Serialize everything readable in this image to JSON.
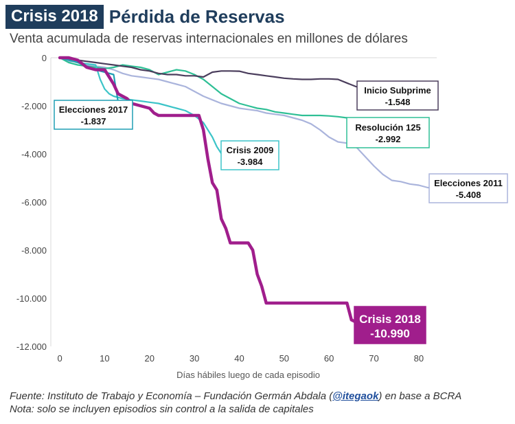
{
  "header": {
    "badge": "Crisis 2018",
    "title": "Pérdida de Reservas",
    "subtitle": "Venta acumulada de reservas internacionales en millones de dólares"
  },
  "footer": {
    "source_prefix": "Fuente: Instituto de Trabajo y Economía – Fundación Germán Abdala (",
    "source_handle": "@itegaok",
    "source_suffix": ") en base a BCRA",
    "note": "Nota: solo se incluyen episodios sin control a la salida de capitales"
  },
  "chart_data": {
    "type": "line",
    "title": "Pérdida de Reservas",
    "xlabel": "Días hábiles luego de cada episodio",
    "ylabel": "",
    "xlim": [
      -2,
      84
    ],
    "ylim": [
      -12000,
      0
    ],
    "x_ticks": [
      0,
      10,
      20,
      30,
      40,
      50,
      60,
      70,
      80
    ],
    "y_ticks": [
      0,
      -2000,
      -4000,
      -6000,
      -8000,
      -10000,
      -12000
    ],
    "y_tick_labels": [
      "0",
      "-2.000",
      "-4.000",
      "-6.000",
      "-8.000",
      "-10.000",
      "-12.000"
    ],
    "grid": false,
    "series": [
      {
        "name": "Elecciones 2011",
        "color": "#aab4dc",
        "final_label": "-5.408",
        "points": [
          [
            0,
            0
          ],
          [
            2,
            -150
          ],
          [
            4,
            -150
          ],
          [
            6,
            -300
          ],
          [
            8,
            -350
          ],
          [
            10,
            -400
          ],
          [
            12,
            -500
          ],
          [
            14,
            -650
          ],
          [
            16,
            -750
          ],
          [
            18,
            -800
          ],
          [
            20,
            -850
          ],
          [
            22,
            -900
          ],
          [
            24,
            -1000
          ],
          [
            26,
            -1100
          ],
          [
            28,
            -1200
          ],
          [
            30,
            -1400
          ],
          [
            32,
            -1600
          ],
          [
            34,
            -1750
          ],
          [
            36,
            -1900
          ],
          [
            38,
            -2000
          ],
          [
            40,
            -2100
          ],
          [
            42,
            -2150
          ],
          [
            44,
            -2200
          ],
          [
            46,
            -2300
          ],
          [
            48,
            -2350
          ],
          [
            50,
            -2400
          ],
          [
            52,
            -2500
          ],
          [
            54,
            -2600
          ],
          [
            56,
            -2750
          ],
          [
            58,
            -3000
          ],
          [
            60,
            -3300
          ],
          [
            62,
            -3500
          ],
          [
            64,
            -3550
          ],
          [
            66,
            -3700
          ],
          [
            68,
            -4100
          ],
          [
            70,
            -4500
          ],
          [
            72,
            -4850
          ],
          [
            74,
            -5100
          ],
          [
            76,
            -5150
          ],
          [
            78,
            -5250
          ],
          [
            80,
            -5300
          ],
          [
            82,
            -5400
          ],
          [
            83,
            -5408
          ]
        ]
      },
      {
        "name": "Resolución 125",
        "color": "#2ebf95",
        "final_label": "-2.992",
        "points": [
          [
            0,
            0
          ],
          [
            2,
            -200
          ],
          [
            4,
            -300
          ],
          [
            6,
            -350
          ],
          [
            8,
            -400
          ],
          [
            10,
            -450
          ],
          [
            12,
            -400
          ],
          [
            14,
            -300
          ],
          [
            16,
            -350
          ],
          [
            18,
            -400
          ],
          [
            20,
            -500
          ],
          [
            22,
            -700
          ],
          [
            24,
            -600
          ],
          [
            26,
            -500
          ],
          [
            28,
            -550
          ],
          [
            30,
            -700
          ],
          [
            32,
            -900
          ],
          [
            34,
            -1200
          ],
          [
            36,
            -1500
          ],
          [
            38,
            -1700
          ],
          [
            40,
            -1900
          ],
          [
            42,
            -2000
          ],
          [
            44,
            -2100
          ],
          [
            46,
            -2150
          ],
          [
            48,
            -2250
          ],
          [
            50,
            -2300
          ],
          [
            52,
            -2350
          ],
          [
            54,
            -2400
          ],
          [
            56,
            -2400
          ],
          [
            58,
            -2400
          ],
          [
            60,
            -2420
          ],
          [
            62,
            -2450
          ],
          [
            64,
            -2500
          ],
          [
            65,
            -2992
          ]
        ]
      },
      {
        "name": "Inicio Subprime",
        "color": "#4a3d5c",
        "final_label": "-1.548",
        "points": [
          [
            0,
            0
          ],
          [
            2,
            -50
          ],
          [
            4,
            -100
          ],
          [
            6,
            -150
          ],
          [
            8,
            -200
          ],
          [
            10,
            -250
          ],
          [
            12,
            -300
          ],
          [
            14,
            -350
          ],
          [
            16,
            -400
          ],
          [
            18,
            -500
          ],
          [
            20,
            -550
          ],
          [
            22,
            -650
          ],
          [
            24,
            -700
          ],
          [
            26,
            -700
          ],
          [
            28,
            -750
          ],
          [
            30,
            -750
          ],
          [
            32,
            -800
          ],
          [
            34,
            -600
          ],
          [
            36,
            -550
          ],
          [
            38,
            -550
          ],
          [
            40,
            -560
          ],
          [
            42,
            -650
          ],
          [
            44,
            -700
          ],
          [
            46,
            -750
          ],
          [
            48,
            -800
          ],
          [
            50,
            -850
          ],
          [
            52,
            -880
          ],
          [
            54,
            -900
          ],
          [
            56,
            -900
          ],
          [
            58,
            -880
          ],
          [
            60,
            -880
          ],
          [
            62,
            -900
          ],
          [
            64,
            -1050
          ],
          [
            66,
            -1200
          ],
          [
            68,
            -1300
          ],
          [
            70,
            -1350
          ],
          [
            72,
            -1548
          ]
        ]
      },
      {
        "name": "Crisis 2009",
        "color": "#3cc4c8",
        "final_label": "-3.984",
        "points": [
          [
            0,
            0
          ],
          [
            2,
            -100
          ],
          [
            4,
            -200
          ],
          [
            6,
            -250
          ],
          [
            8,
            -300
          ],
          [
            9,
            -900
          ],
          [
            10,
            -1300
          ],
          [
            11,
            -1500
          ],
          [
            12,
            -1600
          ],
          [
            14,
            -1700
          ],
          [
            16,
            -1750
          ],
          [
            18,
            -1800
          ],
          [
            20,
            -1850
          ],
          [
            22,
            -1900
          ],
          [
            24,
            -2000
          ],
          [
            26,
            -2100
          ],
          [
            28,
            -2200
          ],
          [
            30,
            -2400
          ],
          [
            32,
            -2700
          ],
          [
            34,
            -3300
          ],
          [
            35,
            -3700
          ],
          [
            36,
            -3984
          ]
        ]
      },
      {
        "name": "Elecciones 2017",
        "color": "#1f9eb4",
        "final_label": "-1.837",
        "points": [
          [
            0,
            0
          ],
          [
            2,
            -100
          ],
          [
            4,
            -200
          ],
          [
            6,
            -350
          ],
          [
            8,
            -500
          ],
          [
            10,
            -600
          ],
          [
            12,
            -700
          ],
          [
            13,
            -1837
          ]
        ]
      },
      {
        "name": "Crisis 2018",
        "color": "#a01e8c",
        "final_label": "-10.990",
        "points": [
          [
            0,
            0
          ],
          [
            2,
            0
          ],
          [
            4,
            -100
          ],
          [
            6,
            -400
          ],
          [
            8,
            -500
          ],
          [
            10,
            -500
          ],
          [
            11,
            -800
          ],
          [
            12,
            -1100
          ],
          [
            13,
            -1500
          ],
          [
            15,
            -1700
          ],
          [
            16,
            -1900
          ],
          [
            18,
            -2000
          ],
          [
            20,
            -2100
          ],
          [
            21,
            -2300
          ],
          [
            22,
            -2400
          ],
          [
            24,
            -2400
          ],
          [
            26,
            -2400
          ],
          [
            28,
            -2400
          ],
          [
            30,
            -2400
          ],
          [
            31,
            -2400
          ],
          [
            32,
            -3000
          ],
          [
            33,
            -4200
          ],
          [
            34,
            -5200
          ],
          [
            35,
            -5500
          ],
          [
            36,
            -6700
          ],
          [
            37,
            -7100
          ],
          [
            38,
            -7700
          ],
          [
            40,
            -7700
          ],
          [
            42,
            -7700
          ],
          [
            43,
            -8000
          ],
          [
            44,
            -9000
          ],
          [
            45,
            -9500
          ],
          [
            46,
            -10200
          ],
          [
            48,
            -10200
          ],
          [
            50,
            -10200
          ],
          [
            52,
            -10200
          ],
          [
            54,
            -10200
          ],
          [
            56,
            -10200
          ],
          [
            58,
            -10200
          ],
          [
            60,
            -10200
          ],
          [
            62,
            -10200
          ],
          [
            64,
            -10200
          ],
          [
            65,
            -10900
          ],
          [
            66,
            -10990
          ]
        ]
      }
    ]
  }
}
